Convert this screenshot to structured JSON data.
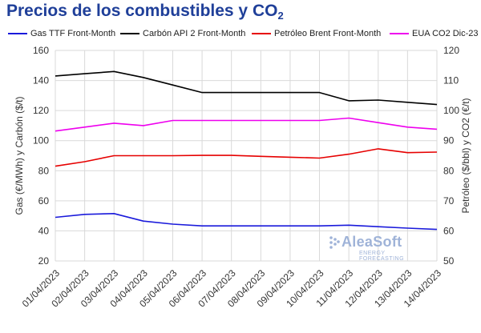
{
  "header": {
    "title_main": "Precios de los combustibles y CO",
    "title_sub": "2"
  },
  "watermark": {
    "brand": "AleaSoft",
    "tagline": "ENERGY FORECASTING"
  },
  "chart_data": {
    "type": "line",
    "title": "Precios de los combustibles y CO2",
    "categories": [
      "01/04/2023",
      "02/04/2023",
      "03/04/2023",
      "04/04/2023",
      "05/04/2023",
      "06/04/2023",
      "07/04/2023",
      "08/04/2023",
      "09/04/2023",
      "10/04/2023",
      "11/04/2023",
      "12/04/2023",
      "13/04/2023",
      "14/04/2023"
    ],
    "ylabel_left": "Gas (€/MWh) y Carbón ($/t)",
    "ylabel_right": "Petróleo ($/bbl) y CO2 (€/t)",
    "ylim_left": [
      20,
      160
    ],
    "ylim_right": [
      50,
      120
    ],
    "yticks_left": [
      20,
      40,
      60,
      80,
      100,
      120,
      140,
      160
    ],
    "yticks_right": [
      50,
      60,
      70,
      80,
      90,
      100,
      110,
      120
    ],
    "grid": true,
    "legend_position": "top",
    "series": [
      {
        "name": "Gas TTF Front-Month",
        "axis": "left",
        "color": "#1a1adb",
        "values": [
          49.0,
          51.0,
          51.5,
          46.5,
          44.5,
          43.3,
          43.3,
          43.3,
          43.3,
          43.3,
          43.8,
          42.8,
          41.8,
          41.0
        ]
      },
      {
        "name": "Carbón API 2 Front-Month",
        "axis": "left",
        "color": "#000000",
        "values": [
          143.0,
          144.5,
          146.0,
          142.0,
          137.0,
          132.0,
          132.0,
          132.0,
          132.0,
          132.0,
          126.5,
          127.0,
          125.5,
          124.0
        ]
      },
      {
        "name": "Petróleo Brent Front-Month",
        "axis": "right",
        "color": "#e60000",
        "values": [
          81.5,
          83.0,
          85.0,
          85.0,
          85.0,
          85.1,
          85.1,
          84.8,
          84.5,
          84.2,
          85.5,
          87.3,
          86.0,
          86.2
        ]
      },
      {
        "name": "EUA CO2 Dic-23",
        "axis": "right",
        "color": "#ee00ee",
        "values": [
          93.2,
          94.5,
          95.8,
          95.0,
          96.7,
          96.7,
          96.7,
          96.7,
          96.7,
          96.7,
          97.5,
          96.0,
          94.5,
          93.8
        ]
      }
    ]
  }
}
